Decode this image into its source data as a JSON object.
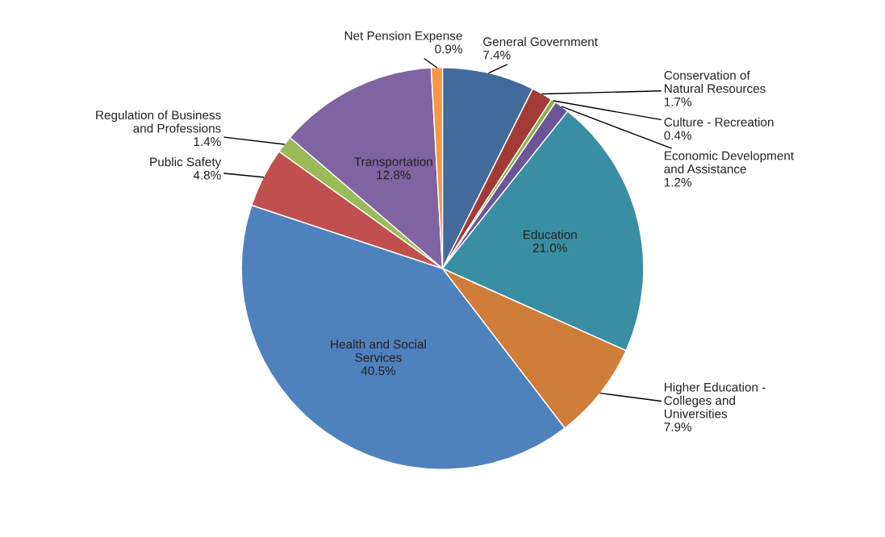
{
  "chart_data": {
    "type": "pie",
    "categories": [
      "General Government",
      "Conservation of Natural Resources",
      "Culture - Recreation",
      "Economic Development and Assistance",
      "Education",
      "Higher Education - Colleges and Universities",
      "Health and Social Services",
      "Public Safety",
      "Regulation of Business and Professions",
      "Transportation",
      "Net Pension Expense"
    ],
    "values": [
      7.4,
      1.7,
      0.4,
      1.2,
      21.0,
      7.9,
      40.5,
      4.8,
      1.4,
      12.8,
      0.9
    ],
    "colors": [
      "#426a9b",
      "#a33a36",
      "#8eb04a",
      "#6b5596",
      "#3a8ea3",
      "#d07d3a",
      "#4f81bd",
      "#c0504d",
      "#9bbb59",
      "#8064a2",
      "#f79646"
    ],
    "value_labels": [
      "7.4%",
      "1.7%",
      "0.4%",
      "1.2%",
      "21.0%",
      "7.9%",
      "40.5%",
      "4.8%",
      "1.4%",
      "12.8%",
      "0.9%"
    ],
    "data_labels": true,
    "legend": false
  }
}
